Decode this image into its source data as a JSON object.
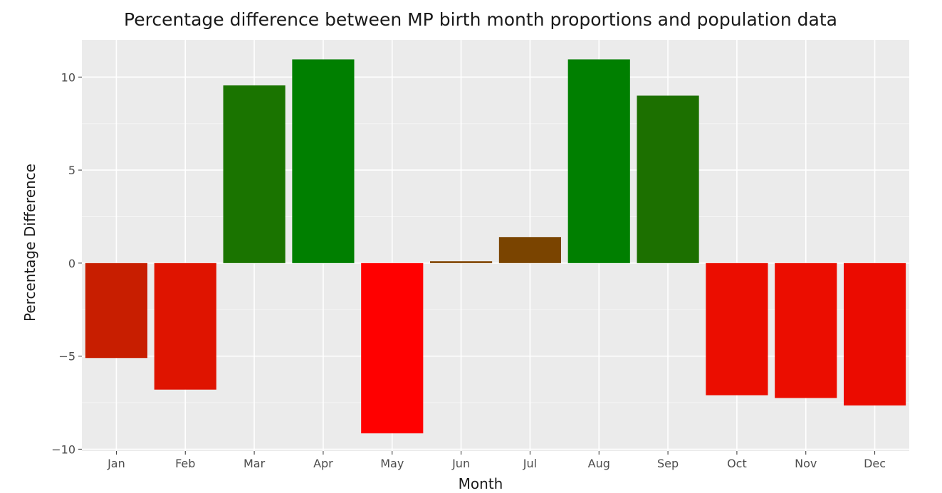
{
  "chart_data": {
    "type": "bar",
    "title": "Percentage difference between MP birth month proportions and population data",
    "xlabel": "Month",
    "ylabel": "Percentage Difference",
    "categories": [
      "Jan",
      "Feb",
      "Mar",
      "Apr",
      "May",
      "Jun",
      "Jul",
      "Aug",
      "Sep",
      "Oct",
      "Nov",
      "Dec"
    ],
    "values": [
      -5.1,
      -6.8,
      9.55,
      10.95,
      -9.15,
      0.1,
      1.4,
      10.95,
      9.0,
      -7.1,
      -7.25,
      -7.65
    ],
    "bar_colors": [
      "#c81e00",
      "#df1400",
      "#1a7400",
      "#007f00",
      "#ff0000",
      "#7f4300",
      "#7a4400",
      "#007f00",
      "#1c7000",
      "#eb0d00",
      "#eb0d00",
      "#eb0b00"
    ],
    "ylim": [
      -10.1,
      12
    ],
    "yticks": [
      -10,
      -5,
      0,
      5,
      10
    ],
    "ytick_labels": [
      "−10",
      "−5",
      "0",
      "5",
      "10"
    ],
    "grid": true,
    "legend": "none",
    "colors": {
      "panel_background": "#ebebeb",
      "grid_major": "#ffffff",
      "grid_minor": "#f5f5f5",
      "axis_ticks": "#333333"
    }
  }
}
